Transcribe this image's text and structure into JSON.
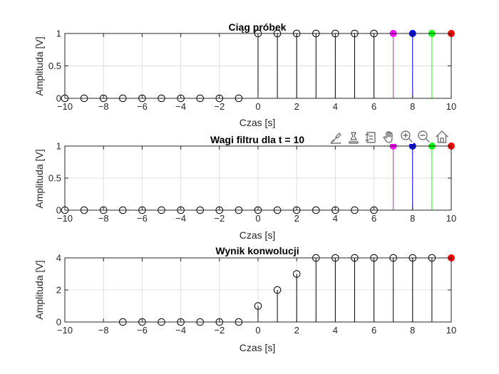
{
  "toolbar": {
    "icons": [
      "brush-icon",
      "data-cursor-icon",
      "insert-legend-icon",
      "pan-hand-icon",
      "zoom-in-icon",
      "zoom-out-icon",
      "home-icon"
    ]
  },
  "colors": {
    "axis": "#262626",
    "grid": "#dfdfdf",
    "stem_default": "#000000",
    "series_highlights": [
      "#ff00ff",
      "#0000ff",
      "#00ff00",
      "#ff0000"
    ]
  },
  "chart_data": [
    {
      "type": "stem",
      "title": "Ciąg próbek",
      "xlabel": "Czas [s]",
      "ylabel": "Amplituda [V]",
      "xlim": [
        -10,
        10
      ],
      "ylim": [
        0,
        1
      ],
      "xticks": [
        -10,
        -8,
        -6,
        -4,
        -2,
        0,
        2,
        4,
        6,
        8,
        10
      ],
      "yticks": [
        0,
        0.5,
        1
      ],
      "grid": true,
      "x": [
        -10,
        -9,
        -8,
        -7,
        -6,
        -5,
        -4,
        -3,
        -2,
        -1,
        0,
        1,
        2,
        3,
        4,
        5,
        6,
        7,
        8,
        9,
        10
      ],
      "y": [
        0,
        0,
        0,
        0,
        0,
        0,
        0,
        0,
        0,
        0,
        1,
        1,
        1,
        1,
        1,
        1,
        1,
        1,
        1,
        1,
        1
      ],
      "highlight": {
        "7": "#ff00ff",
        "8": "#0000ff",
        "9": "#00ff00",
        "10": "#ff0000"
      }
    },
    {
      "type": "stem",
      "title": "Wagi filtru dla t = 10",
      "xlabel": "Czas [s]",
      "ylabel": "Amplituda [V]",
      "xlim": [
        -10,
        10
      ],
      "ylim": [
        0,
        1
      ],
      "xticks": [
        -10,
        -8,
        -6,
        -4,
        -2,
        0,
        2,
        4,
        6,
        8,
        10
      ],
      "yticks": [
        0,
        0.5,
        1
      ],
      "grid": true,
      "x": [
        -10,
        -9,
        -8,
        -7,
        -6,
        -5,
        -4,
        -3,
        -2,
        -1,
        0,
        1,
        2,
        3,
        4,
        5,
        6,
        7,
        8,
        9,
        10
      ],
      "y": [
        0,
        0,
        0,
        0,
        0,
        0,
        0,
        0,
        0,
        0,
        0,
        0,
        0,
        0,
        0,
        0,
        0,
        1,
        1,
        1,
        1
      ],
      "highlight": {
        "7": "#ff00ff",
        "8": "#0000ff",
        "9": "#00ff00",
        "10": "#ff0000"
      }
    },
    {
      "type": "stem",
      "title": "Wynik konwolucji",
      "xlabel": "Czas [s]",
      "ylabel": "Amplituda [V]",
      "xlim": [
        -10,
        10
      ],
      "ylim": [
        0,
        4
      ],
      "xticks": [
        -10,
        -8,
        -6,
        -4,
        -2,
        0,
        2,
        4,
        6,
        8,
        10
      ],
      "yticks": [
        0,
        2,
        4
      ],
      "grid": true,
      "x": [
        -7,
        -6,
        -5,
        -4,
        -3,
        -2,
        -1,
        0,
        1,
        2,
        3,
        4,
        5,
        6,
        7,
        8,
        9,
        10
      ],
      "y": [
        0,
        0,
        0,
        0,
        0,
        0,
        0,
        1,
        2,
        3,
        4,
        4,
        4,
        4,
        4,
        4,
        4,
        4
      ],
      "highlight": {
        "10": "#ff0000"
      }
    }
  ]
}
